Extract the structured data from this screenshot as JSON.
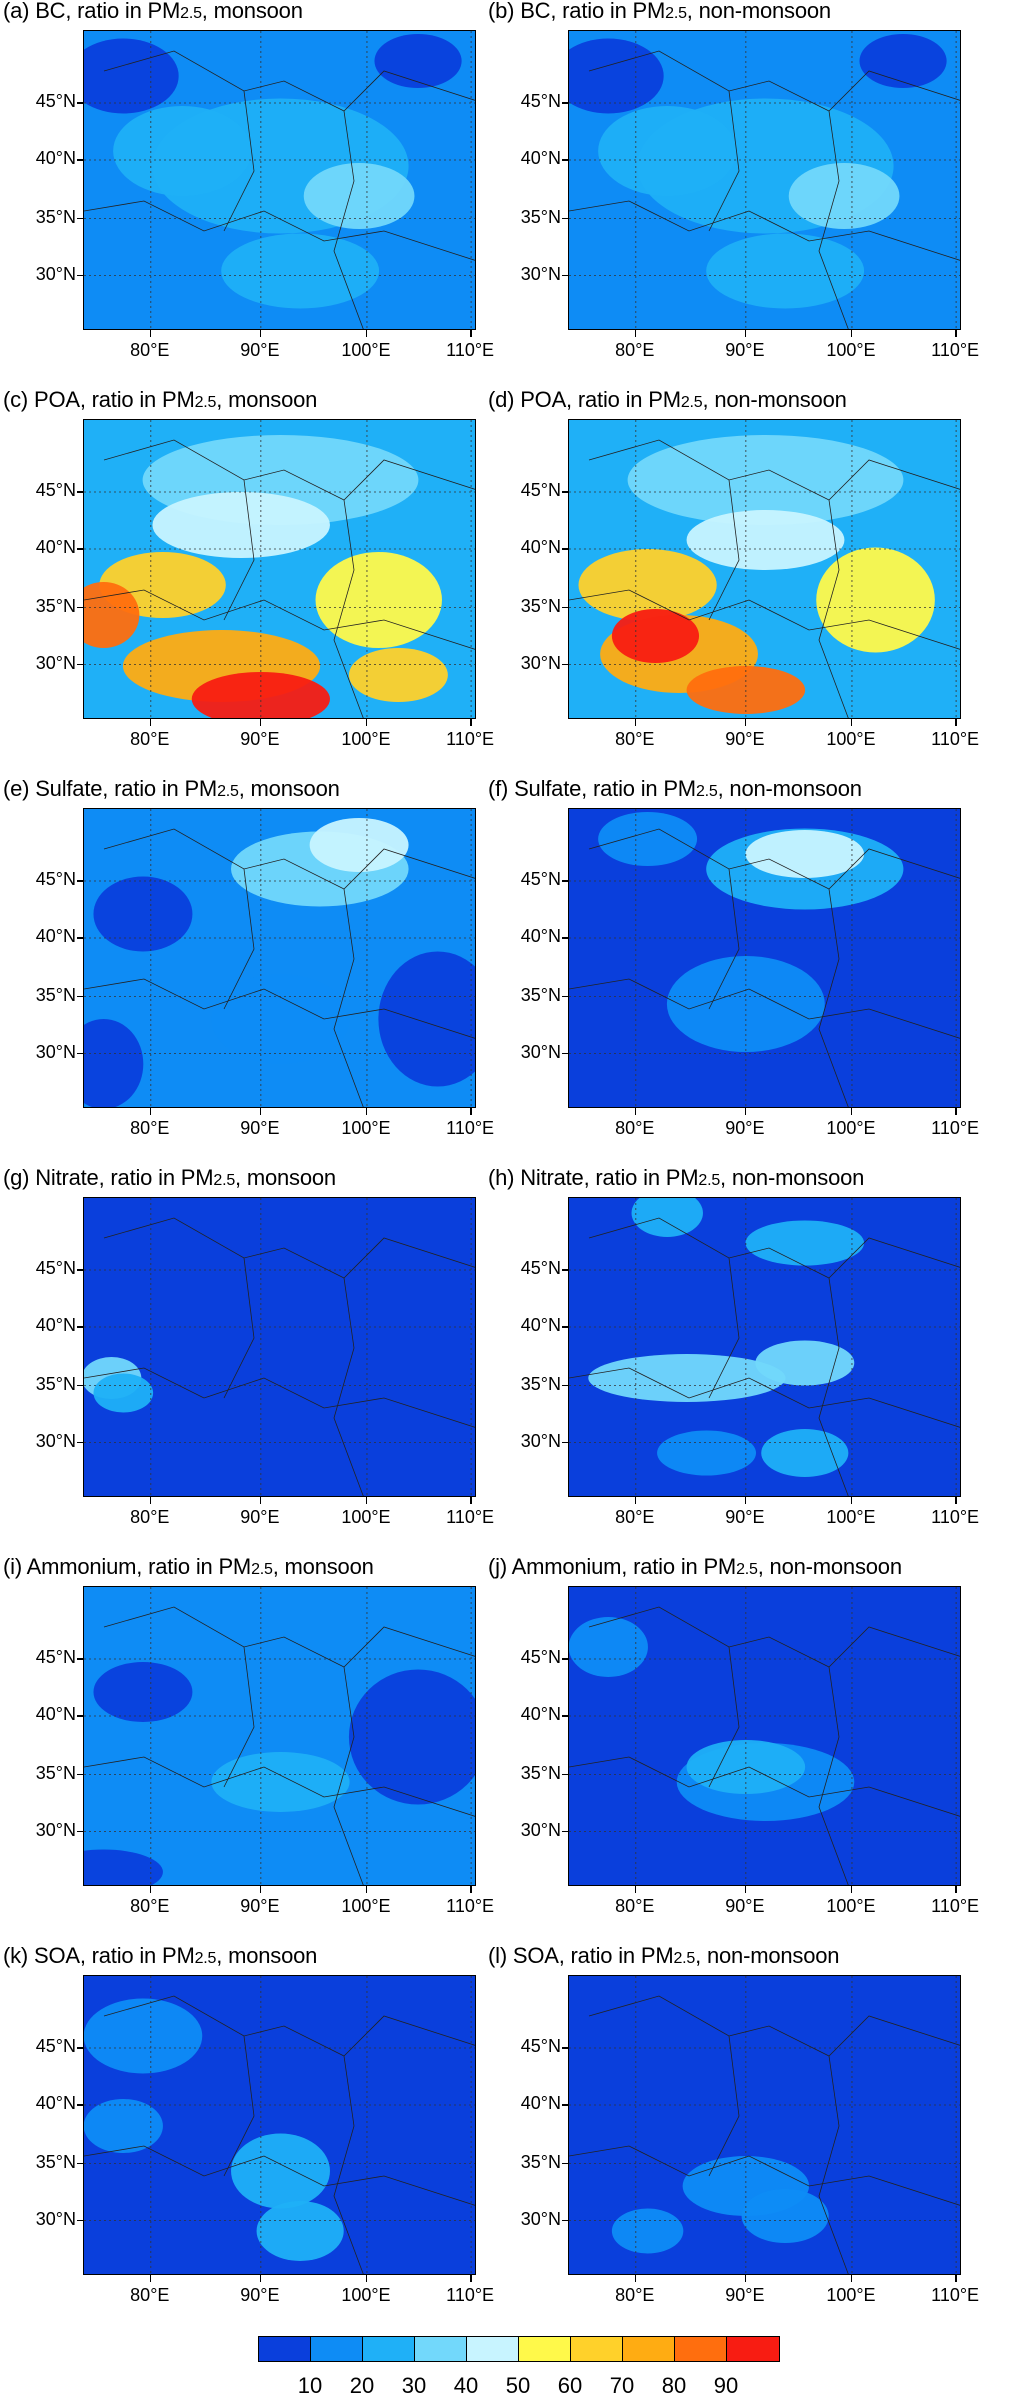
{
  "panels": [
    {
      "title_a": "(a) BC, ratio in PM",
      "title_b": ", monsoon",
      "scheme": "bc"
    },
    {
      "title_a": "(b) BC, ratio in PM",
      "title_b": ", non-monsoon",
      "scheme": "bc"
    },
    {
      "title_a": "(c) POA, ratio in PM",
      "title_b": ", monsoon",
      "scheme": "poa"
    },
    {
      "title_a": "(d) POA, ratio in PM",
      "title_b": ", non-monsoon",
      "scheme": "poa2"
    },
    {
      "title_a": "(e) Sulfate, ratio in PM",
      "title_b": ", monsoon",
      "scheme": "sulf"
    },
    {
      "title_a": "(f) Sulfate, ratio in PM",
      "title_b": ", non-monsoon",
      "scheme": "sulf2"
    },
    {
      "title_a": "(g) Nitrate, ratio in PM",
      "title_b": ", monsoon",
      "scheme": "nit"
    },
    {
      "title_a": "(h) Nitrate, ratio in PM",
      "title_b": ", non-monsoon",
      "scheme": "nit2"
    },
    {
      "title_a": "(i) Ammonium, ratio in PM",
      "title_b": ", monsoon",
      "scheme": "amm"
    },
    {
      "title_a": "(j) Ammonium, ratio in PM",
      "title_b": ", non-monsoon",
      "scheme": "amm2"
    },
    {
      "title_a": "(k) SOA, ratio in PM",
      "title_b": ", monsoon",
      "scheme": "soa"
    },
    {
      "title_a": "(l) SOA, ratio in PM",
      "title_b": ", non-monsoon",
      "scheme": "soa2"
    }
  ],
  "pm_subscript": "2.5",
  "y_ticks": [
    "45°N",
    "40°N",
    "35°N",
    "30°N"
  ],
  "x_ticks": [
    "80°E",
    "90°E",
    "100°E",
    "110°E"
  ],
  "colorbar": {
    "colors": [
      "#0a3fdc",
      "#0e8cf5",
      "#1fb0f7",
      "#72d8fb",
      "#c8f4ff",
      "#fff94a",
      "#ffd12a",
      "#ffac12",
      "#ff6e0e",
      "#f81c12",
      "#cc0010"
    ],
    "labels": [
      "10",
      "20",
      "30",
      "40",
      "50",
      "60",
      "70",
      "80",
      "90"
    ]
  }
}
